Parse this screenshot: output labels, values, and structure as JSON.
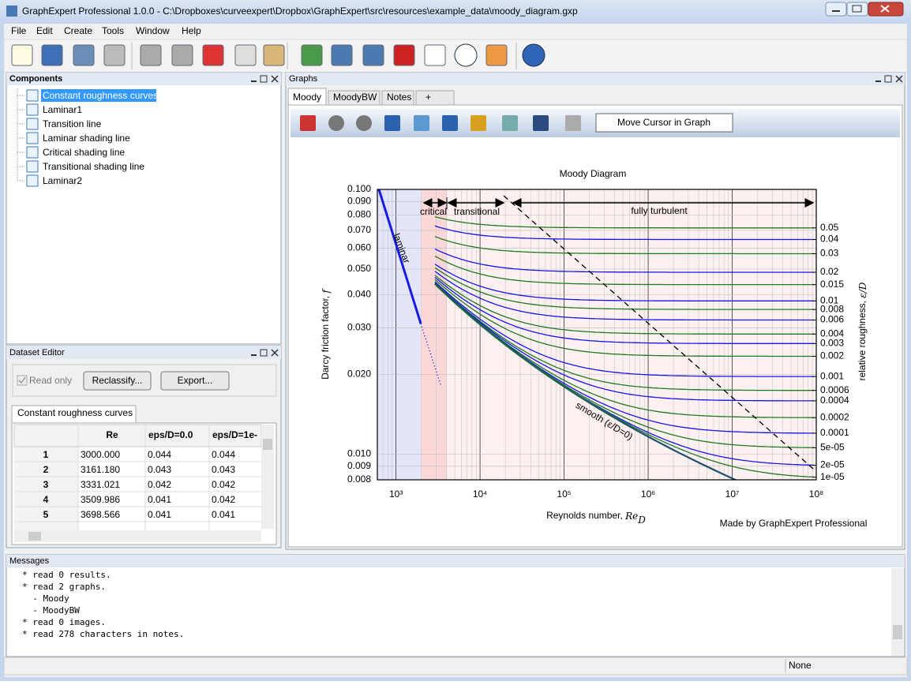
{
  "window": {
    "title": "GraphExpert Professional 1.0.0 - C:\\Dropboxes\\curveexpert\\Dropbox\\GraphExpert\\src\\resources\\example_data\\moody_diagram.gxp"
  },
  "menu": [
    "File",
    "Edit",
    "Create",
    "Tools",
    "Window",
    "Help"
  ],
  "components": {
    "title": "Components",
    "items": [
      "Constant roughness curves",
      "Laminar1",
      "Transition line",
      "Laminar shading line",
      "Critical shading line",
      "Transitional shading line",
      "Laminar2"
    ]
  },
  "dataset_editor": {
    "title": "Dataset Editor",
    "read_only": "Read only",
    "buttons": [
      "Reclassify...",
      "Export..."
    ],
    "tab": "Constant roughness curves",
    "columns": [
      "Re",
      "eps/D=0.0",
      "eps/D=1e-"
    ],
    "rows": [
      [
        "1",
        "3000.000",
        "0.044",
        "0.044"
      ],
      [
        "2",
        "3161.180",
        "0.043",
        "0.043"
      ],
      [
        "3",
        "3331.021",
        "0.042",
        "0.042"
      ],
      [
        "4",
        "3509.986",
        "0.041",
        "0.042"
      ],
      [
        "5",
        "3698.566",
        "0.041",
        "0.041"
      ]
    ]
  },
  "graphs": {
    "title": "Graphs",
    "tabs": [
      "Moody",
      "MoodyBW",
      "Notes",
      "+"
    ],
    "cursor_mode": "Move Cursor in Graph",
    "chart": {
      "type": "line",
      "title": "Moody Diagram",
      "x_label": "Reynolds number, ",
      "x_label_math": "Re",
      "x_label_sub": "D",
      "y_label": "Darcy friction factor, ",
      "y_label_math": "f",
      "y2_label": "relative roughness, ",
      "y2_label_math": "ε/D",
      "log_x": true,
      "log_y": true,
      "xlim": [
        600,
        100000000
      ],
      "ylim": [
        0.008,
        0.1
      ],
      "xticks": [
        {
          "value": 1000,
          "label": "10³"
        },
        {
          "value": 10000,
          "label": "10⁴"
        },
        {
          "value": 100000,
          "label": "10⁵"
        },
        {
          "value": 1000000,
          "label": "10⁶"
        },
        {
          "value": 10000000,
          "label": "10⁷"
        },
        {
          "value": 100000000,
          "label": "10⁸"
        }
      ],
      "yticks": [
        {
          "value": 0.1,
          "label": "0.100"
        },
        {
          "value": 0.09,
          "label": "0.090"
        },
        {
          "value": 0.08,
          "label": "0.080"
        },
        {
          "value": 0.07,
          "label": "0.070"
        },
        {
          "value": 0.06,
          "label": "0.060"
        },
        {
          "value": 0.05,
          "label": "0.050"
        },
        {
          "value": 0.04,
          "label": "0.040"
        },
        {
          "value": 0.03,
          "label": "0.030"
        },
        {
          "value": 0.02,
          "label": "0.020"
        },
        {
          "value": 0.01,
          "label": "0.010"
        },
        {
          "value": 0.009,
          "label": "0.009"
        },
        {
          "value": 0.008,
          "label": "0.008"
        }
      ],
      "roughness": [
        0.05,
        0.04,
        0.03,
        0.02,
        0.015,
        0.01,
        0.008,
        0.006,
        0.004,
        0.003,
        0.002,
        0.001,
        0.0006,
        0.0004,
        0.0002,
        0.0001,
        {
          "value": 5e-05,
          "label": "5e-05"
        },
        {
          "value": 2e-05,
          "label": "2e-05"
        },
        {
          "value": 1e-05,
          "label": "1e-05"
        }
      ],
      "curve_colors": [
        "#1e7b1e",
        "#1515ee"
      ],
      "smooth": {
        "value": 0,
        "label": "smooth (ε/D=0)",
        "color": "#1f4e6e"
      },
      "annotations": {
        "laminar": "laminar",
        "critical": "critical",
        "transitional": "transitional",
        "turbulent": "fully turbulent"
      },
      "credit": "Made by GraphExpert Professional"
    }
  },
  "messages": {
    "title": "Messages",
    "lines": [
      "* read 0 results.",
      "* read 2 graphs.",
      "  - Moody",
      "  - MoodyBW",
      "* read 0 images.",
      "* read 278 characters in notes."
    ]
  },
  "status": "None"
}
